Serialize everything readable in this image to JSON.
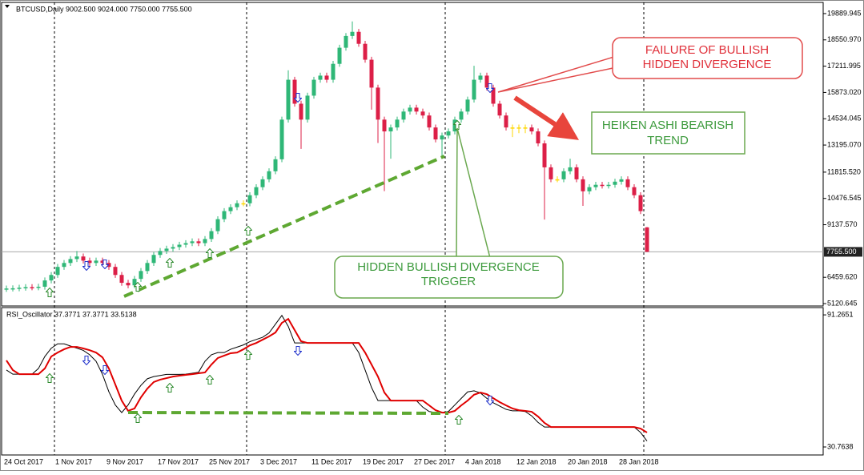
{
  "chart_data": [
    {
      "type": "candlestick",
      "title": "BTCUSD,Daily  9002.500 9024.000 7750.000 7755.500",
      "categories": [
        "24 Oct 2017",
        null,
        null,
        null,
        null,
        null,
        null,
        null,
        "1 Nov 2017",
        null,
        null,
        null,
        null,
        null,
        null,
        null,
        "9 Nov 2017",
        null,
        null,
        null,
        null,
        null,
        null,
        null,
        "17 Nov 2017",
        null,
        null,
        null,
        null,
        null,
        null,
        null,
        "25 Nov 2017",
        null,
        null,
        null,
        null,
        null,
        null,
        null,
        "3 Dec 2017",
        null,
        null,
        null,
        null,
        null,
        null,
        null,
        "11 Dec 2017",
        null,
        null,
        null,
        null,
        null,
        null,
        null,
        "19 Dec 2017",
        null,
        null,
        null,
        null,
        null,
        null,
        null,
        "27 Dec 2017",
        null,
        null,
        null,
        null,
        null,
        null,
        null,
        "4 Jan 2018",
        null,
        null,
        null,
        null,
        null,
        null,
        null,
        "12 Jan 2018",
        null,
        null,
        null,
        null,
        null,
        null,
        null,
        "20 Jan 2018",
        null,
        null,
        null,
        null,
        null,
        null,
        null,
        "28 Jan 2018",
        null,
        null,
        null,
        null
      ],
      "open": [
        5870,
        5890,
        5900,
        5930,
        5960,
        5950,
        5980,
        6300,
        6580,
        6990,
        7190,
        7390,
        7520,
        7310,
        7190,
        7310,
        7190,
        6990,
        6580,
        6180,
        6050,
        6380,
        6780,
        7190,
        7600,
        7800,
        7920,
        8000,
        8120,
        8200,
        8290,
        8200,
        8410,
        8810,
        9420,
        9830,
        10030,
        10230,
        10230,
        10640,
        11050,
        11450,
        11860,
        12470,
        14490,
        16520,
        15300,
        14490,
        15710,
        16520,
        16730,
        16520,
        17330,
        18150,
        18750,
        18960,
        18350,
        17540,
        16120,
        14490,
        13890,
        14090,
        14490,
        14900,
        15100,
        14900,
        14700,
        14090,
        13480,
        13680,
        13890,
        14490,
        14900,
        15510,
        16520,
        16730,
        16120,
        15300,
        14700,
        14090,
        14090,
        14090,
        14090,
        13890,
        13280,
        12060,
        11450,
        11450,
        11860,
        12060,
        11450,
        10840,
        11050,
        11170,
        11130,
        11170,
        11330,
        11450,
        11050,
        10640,
        9002.5
      ],
      "high": [
        6040,
        6050,
        6080,
        6110,
        6110,
        6130,
        6450,
        6730,
        7140,
        7340,
        7540,
        7800,
        7670,
        7460,
        7460,
        7460,
        7340,
        7140,
        6730,
        6330,
        6530,
        6930,
        7340,
        7750,
        7950,
        8070,
        8150,
        8270,
        8350,
        8440,
        8440,
        8560,
        8960,
        9570,
        9980,
        10180,
        10380,
        10380,
        10790,
        11200,
        11600,
        12010,
        12620,
        14640,
        17000,
        16670,
        15450,
        15860,
        16670,
        16880,
        16880,
        17480,
        18300,
        18900,
        19490,
        19110,
        18500,
        17690,
        16270,
        14640,
        14240,
        14640,
        15050,
        15250,
        15250,
        15050,
        14850,
        14240,
        13830,
        14040,
        14640,
        15050,
        15660,
        17230,
        16880,
        16880,
        16270,
        15450,
        14850,
        14240,
        14240,
        14240,
        14240,
        14040,
        13430,
        12210,
        11600,
        12010,
        12500,
        12210,
        11600,
        11200,
        11320,
        11320,
        11320,
        11480,
        11600,
        11600,
        11200,
        10790,
        9024
      ],
      "low": [
        5720,
        5740,
        5750,
        5780,
        5800,
        5800,
        5830,
        6150,
        6430,
        6840,
        7040,
        7240,
        7160,
        7040,
        7040,
        7040,
        6840,
        6430,
        6030,
        5900,
        5900,
        6230,
        6630,
        7040,
        7450,
        7650,
        7770,
        7850,
        7970,
        8050,
        8050,
        8050,
        8260,
        8660,
        9270,
        9680,
        9880,
        10080,
        10080,
        10490,
        10900,
        11300,
        11710,
        12320,
        14340,
        15150,
        13000,
        14340,
        15560,
        16370,
        16370,
        16370,
        17180,
        18000,
        18600,
        18200,
        17390,
        15000,
        13300,
        10850,
        12500,
        13940,
        14340,
        14750,
        14750,
        14550,
        13940,
        13330,
        12500,
        13530,
        13740,
        14340,
        14750,
        15360,
        16370,
        15970,
        15150,
        14550,
        13940,
        13600,
        13800,
        13800,
        13740,
        13130,
        9400,
        11300,
        11300,
        11300,
        11710,
        11300,
        10100,
        10690,
        10900,
        10980,
        10980,
        11020,
        11180,
        10900,
        10490,
        9680,
        7750
      ],
      "close": [
        5890,
        5900,
        5930,
        5960,
        5950,
        5980,
        6300,
        6580,
        6990,
        7190,
        7390,
        7520,
        7310,
        7190,
        7310,
        7190,
        6990,
        6580,
        6180,
        6050,
        6380,
        6780,
        7190,
        7600,
        7800,
        7920,
        8000,
        8120,
        8200,
        8290,
        8200,
        8410,
        8810,
        9420,
        9830,
        10030,
        10230,
        10230,
        10640,
        11050,
        11450,
        11860,
        12470,
        14490,
        16520,
        15300,
        14490,
        15710,
        16520,
        16730,
        16520,
        17330,
        18150,
        18750,
        18960,
        18350,
        17540,
        16120,
        14490,
        13890,
        14090,
        14490,
        14900,
        15100,
        14900,
        14700,
        14090,
        13480,
        13680,
        13890,
        14490,
        14900,
        15510,
        16520,
        16730,
        16120,
        15300,
        14700,
        14090,
        14090,
        14090,
        14090,
        13890,
        13280,
        12060,
        11450,
        11450,
        11860,
        12060,
        11450,
        10840,
        11050,
        11170,
        11130,
        11170,
        11330,
        11450,
        11050,
        10640,
        9830,
        7755.5
      ],
      "up_color": "#2fb777",
      "down_color": "#dc1f47",
      "neutral_color": "#ffd700",
      "ylim": [
        5040,
        20255
      ],
      "yticks": [
        19889.945,
        {
          "value": 18550.97,
          "label": "18550.970"
        },
        17211.995,
        {
          "value": 15873.02,
          "label": "15873.020"
        },
        14534.045,
        {
          "value": 13195.07,
          "label": "13195.070"
        },
        {
          "value": 11815.52,
          "label": "11815.520"
        },
        10476.545,
        {
          "value": 9137.57,
          "label": "9137.570"
        },
        {
          "value": 6459.62,
          "label": "6459.620"
        },
        5120.645
      ],
      "price_line": {
        "value": 7755.5,
        "label": "7755.500"
      }
    },
    {
      "type": "line",
      "title": "RSI_Oscillator 37.3771 37.3771 33.5138",
      "series": [
        {
          "color": "#000000",
          "values": [
            66.0,
            64.1,
            64.1,
            64.1,
            64.1,
            66.7,
            72.2,
            76.0,
            78.0,
            78.0,
            77.0,
            76.0,
            75.0,
            73.0,
            70.0,
            64.0,
            56.0,
            50.0,
            46.5,
            50.0,
            55.0,
            59.0,
            62.0,
            63.0,
            63.5,
            64.0,
            64.0,
            64.0,
            64.1,
            64.5,
            65.0,
            70.0,
            73.0,
            74.0,
            74.0,
            75.5,
            76.5,
            77.5,
            79.0,
            80.0,
            81.0,
            83.0,
            87.0,
            91.0,
            86.0,
            78.4,
            78.4,
            78.4,
            78.4,
            78.4,
            78.4,
            78.4,
            78.4,
            78.4,
            78.4,
            74.0,
            66.0,
            58.0,
            52.0,
            52.0,
            52.0,
            52.0,
            52.0,
            52.0,
            52.0,
            49.0,
            47.0,
            46.5,
            46.5,
            47.0,
            50.0,
            53.0,
            56.0,
            56.5,
            55.5,
            53.0,
            51.0,
            49.5,
            48.0,
            47.3,
            47.3,
            47.0,
            45.0,
            42.0,
            39.9,
            39.9,
            39.9,
            39.9,
            39.9,
            39.9,
            39.9,
            39.9,
            39.9,
            39.9,
            39.9,
            39.9,
            39.9,
            39.9,
            39.9,
            37.4,
            33.5
          ]
        },
        {
          "color": "#e00000",
          "values": [
            70.4,
            66.0,
            64.1,
            64.1,
            64.1,
            64.1,
            66.7,
            72.2,
            74.0,
            75.5,
            76.6,
            76.6,
            75.9,
            75.1,
            74.0,
            71.8,
            66.7,
            59.4,
            52.0,
            47.3,
            48.4,
            53.5,
            57.5,
            60.5,
            61.6,
            62.3,
            63.0,
            63.4,
            63.8,
            64.1,
            64.5,
            64.9,
            68.5,
            71.5,
            72.6,
            73.7,
            74.0,
            75.5,
            77.3,
            78.4,
            79.9,
            81.4,
            83.2,
            87.6,
            89.4,
            84.3,
            79.2,
            78.4,
            78.4,
            78.4,
            78.4,
            78.4,
            78.4,
            78.4,
            78.4,
            78.4,
            74.0,
            68.5,
            63.0,
            55.7,
            52.0,
            52.0,
            52.0,
            52.0,
            52.0,
            52.0,
            49.8,
            47.6,
            46.5,
            46.5,
            47.3,
            49.8,
            52.0,
            54.7,
            55.7,
            54.9,
            53.1,
            51.3,
            49.8,
            48.4,
            47.6,
            47.3,
            46.9,
            44.7,
            41.8,
            39.9,
            39.9,
            39.9,
            39.9,
            39.9,
            39.9,
            39.9,
            39.9,
            39.9,
            39.9,
            39.9,
            39.9,
            39.9,
            39.9,
            39.2,
            37.4
          ]
        }
      ],
      "ylim": [
        27.1,
        94.6
      ],
      "yticks": [
        91.2651,
        30.7638
      ]
    }
  ],
  "annotations": [
    {
      "lines": [
        "FAILURE OF BULLISH",
        "HIDDEN DIVERGENCE"
      ]
    },
    {
      "lines": [
        "HEIKEN ASHI BEARISH",
        "TREND"
      ]
    },
    {
      "lines": [
        "HIDDEN BULLISH DIVERGENCE",
        "TRIGGER"
      ]
    }
  ]
}
